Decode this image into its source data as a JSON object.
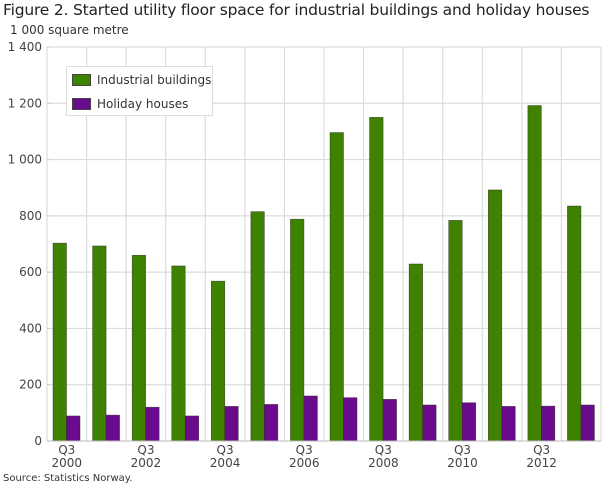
{
  "chart_data": {
    "type": "bar",
    "title": "Figure 2. Started utility floor space for industrial buildings and holiday houses",
    "ylabel": "1 000 square metre",
    "xlabel": "",
    "ylim": [
      0,
      1400
    ],
    "yticks": [
      0,
      200,
      400,
      600,
      800,
      1000,
      1200,
      1400
    ],
    "ytick_labels": [
      "0",
      "200",
      "400",
      "600",
      "800",
      "1 000",
      "1 200",
      "1 400"
    ],
    "categories": [
      "Q3 2000",
      "Q3 2001",
      "Q3 2002",
      "Q3 2003",
      "Q3 2004",
      "Q3 2005",
      "Q3 2006",
      "Q3 2007",
      "Q3 2008",
      "Q3 2009",
      "Q3 2010",
      "Q3 2011",
      "Q3 2012",
      "Q3 2013"
    ],
    "xtick_labels": [
      {
        "index": 0,
        "line1": "Q3",
        "line2": "2000"
      },
      {
        "index": 2,
        "line1": "Q3",
        "line2": "2002"
      },
      {
        "index": 4,
        "line1": "Q3",
        "line2": "2004"
      },
      {
        "index": 6,
        "line1": "Q3",
        "line2": "2006"
      },
      {
        "index": 8,
        "line1": "Q3",
        "line2": "2008"
      },
      {
        "index": 10,
        "line1": "Q3",
        "line2": "2010"
      },
      {
        "index": 12,
        "line1": "Q3",
        "line2": "2012"
      }
    ],
    "series": [
      {
        "name": "Industrial buildings",
        "color": "#3f8200",
        "values": [
          703,
          693,
          660,
          622,
          568,
          815,
          788,
          1096,
          1150,
          629,
          784,
          892,
          1192,
          835
        ]
      },
      {
        "name": "Holiday houses",
        "color": "#6a0a8c",
        "values": [
          89,
          92,
          120,
          89,
          123,
          130,
          160,
          154,
          148,
          128,
          136,
          123,
          124,
          128
        ]
      }
    ],
    "grid": true,
    "legend_position": "top-left"
  },
  "source": "Source: Statistics Norway."
}
